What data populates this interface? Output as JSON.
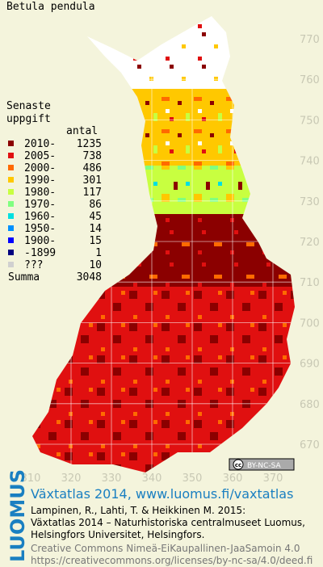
{
  "title": "Betula pendula",
  "legend": {
    "heading_lines": [
      "Senaste",
      "uppgift"
    ],
    "count_header": "antal",
    "items": [
      {
        "label": "2010-",
        "count": 1235,
        "color": "#8b0000"
      },
      {
        "label": "2005-",
        "count": 738,
        "color": "#e01010"
      },
      {
        "label": "2000-",
        "count": 486,
        "color": "#ff6a00"
      },
      {
        "label": "1990-",
        "count": 301,
        "color": "#ffc800"
      },
      {
        "label": "1980-",
        "count": 117,
        "color": "#c8ff40"
      },
      {
        "label": "1970-",
        "count": 86,
        "color": "#80ff80"
      },
      {
        "label": "1960-",
        "count": 45,
        "color": "#00e0e0"
      },
      {
        "label": "1950-",
        "count": 14,
        "color": "#0090ff"
      },
      {
        "label": "1900-",
        "count": 15,
        "color": "#0000ff"
      },
      {
        "label": "-1899",
        "count": 1,
        "color": "#000080"
      },
      {
        "label": "???",
        "count": 10,
        "color": "#d0d0d0"
      }
    ],
    "total_label": "Summa",
    "total": 3048
  },
  "map": {
    "yticks": [
      770,
      760,
      750,
      740,
      730,
      720,
      710,
      700,
      690,
      680,
      670
    ],
    "xticks": [
      310,
      320,
      330,
      340,
      350,
      360,
      370
    ]
  },
  "badge": {
    "cc": "cc",
    "terms": "BY-NC-SA"
  },
  "logo": "LUOMUS",
  "footer": {
    "link": "Växtatlas 2014, www.luomus.fi/vaxtatlas",
    "citation": [
      "Lampinen, R., Lahti, T. & Heikkinen M. 2015:",
      "Växtatlas 2014 – Naturhistoriska centralmuseet Luomus,",
      "Helsingfors Universitet, Helsingfors."
    ],
    "license": [
      "Creative Commons Nimeä-EiKaupallinen-JaaSamoin 4.0",
      "https://creativecommons.org/licenses/by-nc-sa/4.0/deed.fi"
    ]
  }
}
